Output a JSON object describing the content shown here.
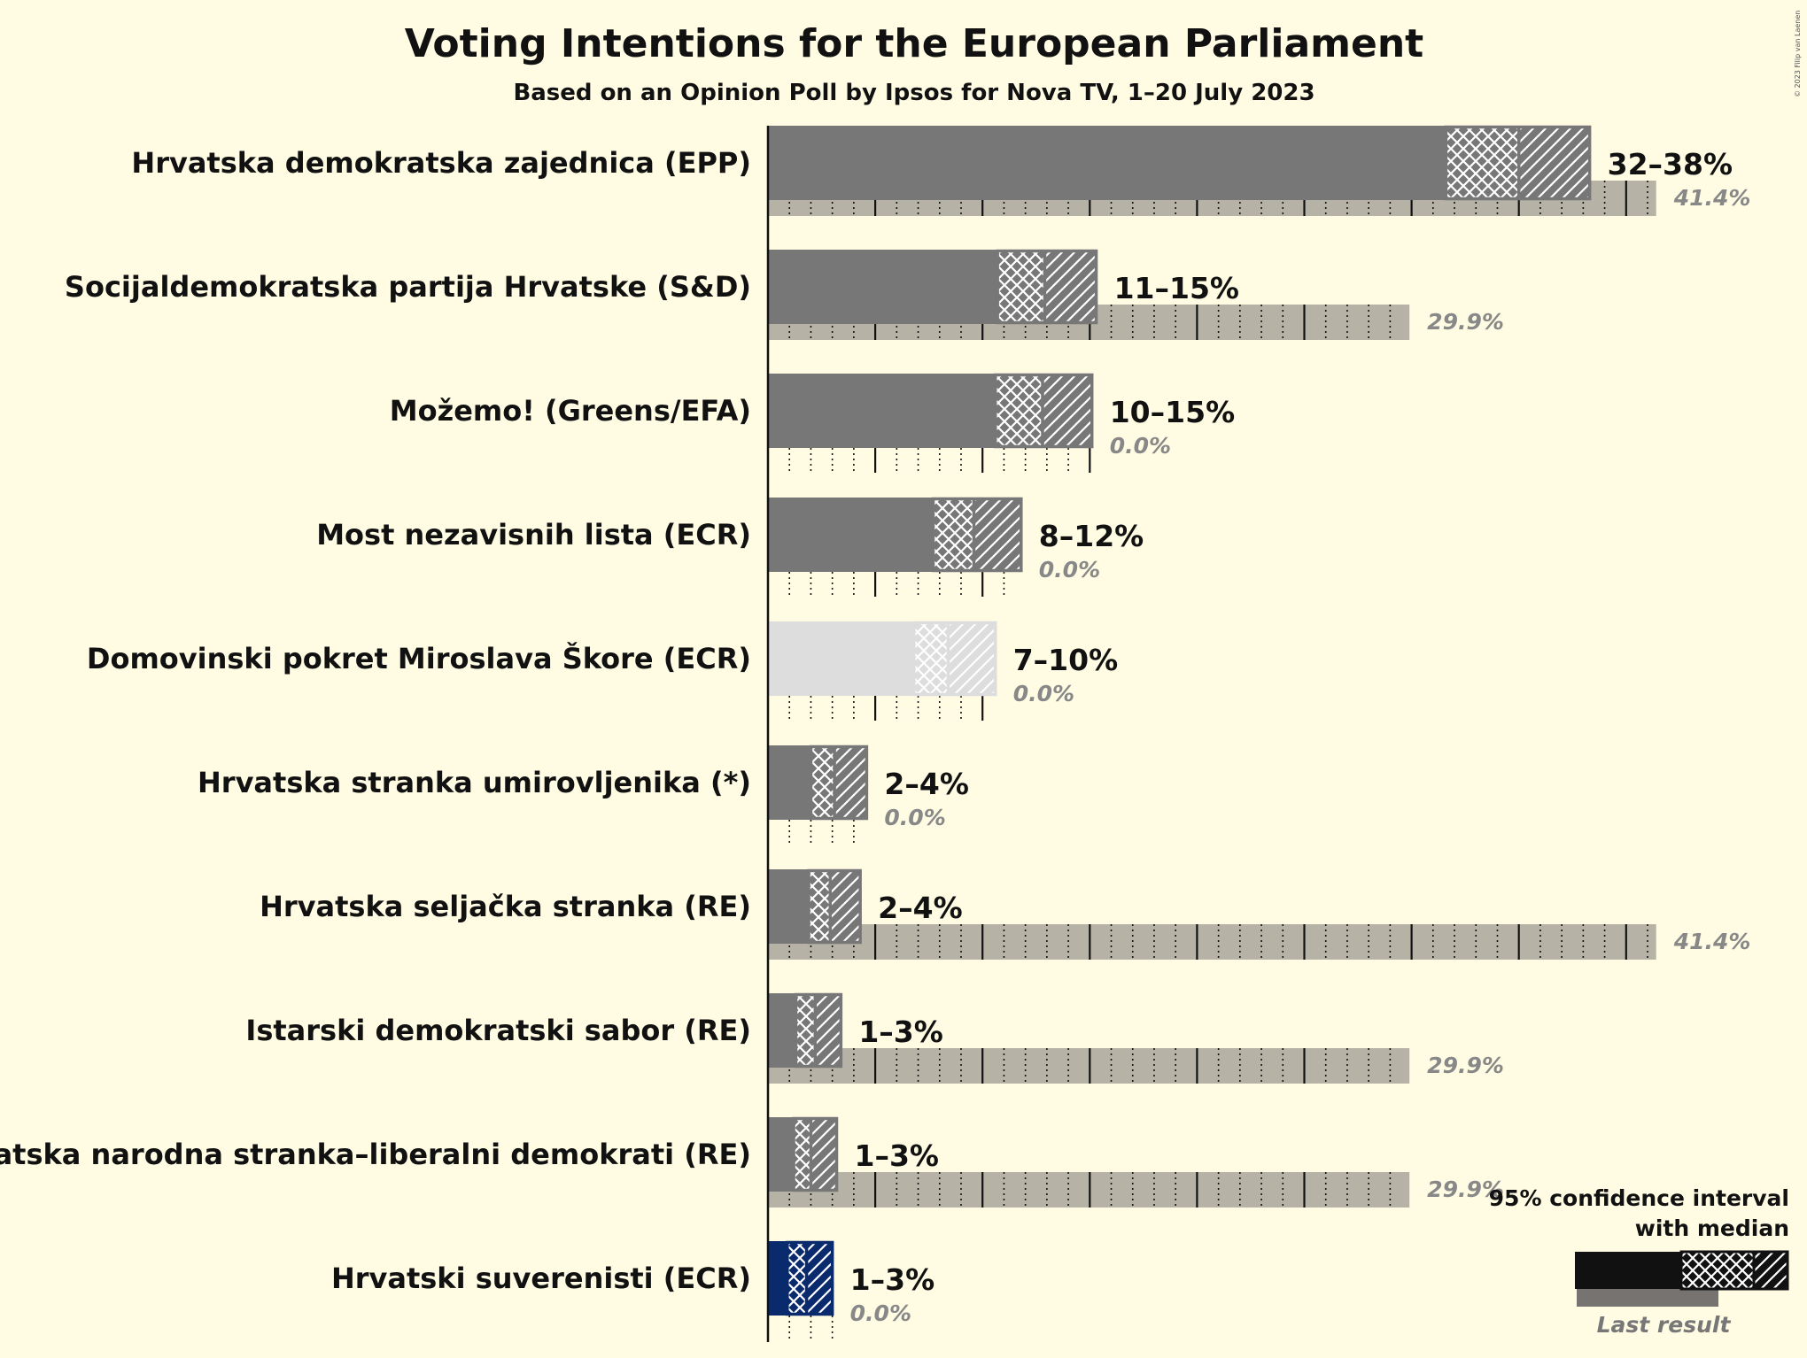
{
  "chart_data": {
    "type": "bar",
    "title": "Voting Intentions for the European Parliament",
    "subtitle": "Based on an Opinion Poll by Ipsos for Nova TV, 1–20 July 2023",
    "copyright": "© 2023 Filip van Laenen",
    "unit": "%",
    "series_labels": {
      "ci": "95% confidence interval",
      "ci2": "with median",
      "last": "Last result"
    },
    "parties": [
      {
        "name": "Hrvatska demokratska zajednica (EPP)",
        "low": 32,
        "high": 38,
        "range_label": "32–38%",
        "solid_end": 31.6,
        "median": 35,
        "ci_end": 38.3,
        "last": 41.4,
        "last_label": "41.4%",
        "color": "#777777"
      },
      {
        "name": "Socijaldemokratska partija Hrvatske (S&D)",
        "low": 11,
        "high": 15,
        "range_label": "11–15%",
        "solid_end": 10.7,
        "median": 12.9,
        "ci_end": 15.3,
        "last": 29.9,
        "last_label": "29.9%",
        "color": "#777777"
      },
      {
        "name": "Možemo! (Greens/EFA)",
        "low": 10,
        "high": 15,
        "range_label": "10–15%",
        "solid_end": 10.6,
        "median": 12.8,
        "ci_end": 15.1,
        "last": 0,
        "last_label": "0.0%",
        "color": "#777777"
      },
      {
        "name": "Most nezavisnih lista (ECR)",
        "low": 8,
        "high": 12,
        "range_label": "8–12%",
        "solid_end": 7.7,
        "median": 9.6,
        "ci_end": 11.8,
        "last": 0,
        "last_label": "0.0%",
        "color": "#777777"
      },
      {
        "name": "Domovinski pokret Miroslava Škore (ECR)",
        "low": 7,
        "high": 10,
        "range_label": "7–10%",
        "solid_end": 6.8,
        "median": 8.4,
        "ci_end": 10.6,
        "last": 0,
        "last_label": "0.0%",
        "color": "#dddddd"
      },
      {
        "name": "Hrvatska stranka umirovljenika (*)",
        "low": 2,
        "high": 4,
        "range_label": "2–4%",
        "solid_end": 2.0,
        "median": 3.1,
        "ci_end": 4.6,
        "last": 0,
        "last_label": "0.0%",
        "color": "#777777"
      },
      {
        "name": "Hrvatska seljačka stranka (RE)",
        "low": 2,
        "high": 4,
        "range_label": "2–4%",
        "solid_end": 1.9,
        "median": 2.9,
        "ci_end": 4.3,
        "last": 41.4,
        "last_label": "41.4%",
        "color": "#777777"
      },
      {
        "name": "Istarski demokratski sabor (RE)",
        "low": 1,
        "high": 3,
        "range_label": "1–3%",
        "solid_end": 1.3,
        "median": 2.2,
        "ci_end": 3.4,
        "last": 29.9,
        "last_label": "29.9%",
        "color": "#777777"
      },
      {
        "name": "Hrvatska narodna stranka–liberalni demokrati (RE)",
        "low": 1,
        "high": 3,
        "range_label": "1–3%",
        "solid_end": 1.2,
        "median": 2.0,
        "ci_end": 3.2,
        "last": 29.9,
        "last_label": "29.9%",
        "color": "#777777"
      },
      {
        "name": "Hrvatski suverenisti (ECR)",
        "low": 1,
        "high": 3,
        "range_label": "1–3%",
        "solid_end": 0.9,
        "median": 1.8,
        "ci_end": 3.0,
        "last": 0,
        "last_label": "0.0%",
        "color": "#0a2a6e"
      }
    ],
    "grid": {
      "major_every": 5,
      "minor_every": 1
    }
  }
}
